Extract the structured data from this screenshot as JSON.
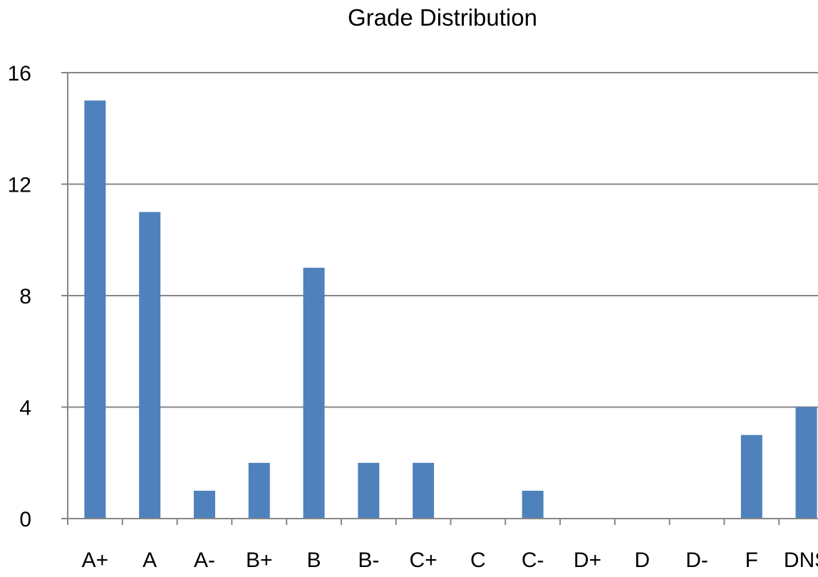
{
  "chart_data": {
    "type": "bar",
    "title": "Grade Distribution",
    "xlabel": "",
    "ylabel": "",
    "categories": [
      "A+",
      "A",
      "A-",
      "B+",
      "B",
      "B-",
      "C+",
      "C",
      "C-",
      "D+",
      "D",
      "D-",
      "F",
      "DNS"
    ],
    "values": [
      15,
      11,
      1,
      2,
      9,
      2,
      2,
      0,
      1,
      0,
      0,
      0,
      3,
      4
    ],
    "ylim": [
      0,
      16
    ],
    "yticks": [
      0,
      4,
      8,
      12,
      16
    ],
    "grid": true,
    "legend": "none",
    "bar_color": "#4F81BD",
    "grid_color": "#868686",
    "axis_color": "#868686"
  }
}
